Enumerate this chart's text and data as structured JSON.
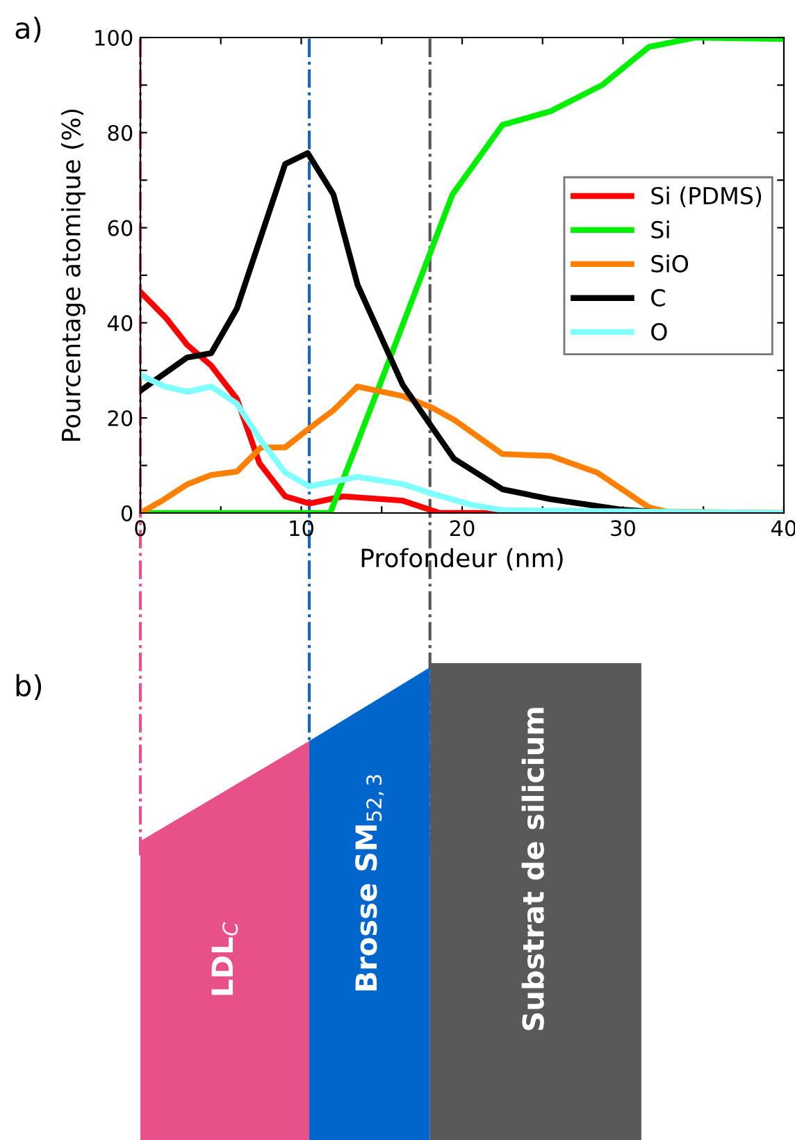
{
  "chart_data": {
    "type": "line",
    "xlabel": "Profondeur (nm)",
    "ylabel": "Pourcentage atomique (%)",
    "xlim": [
      0,
      40
    ],
    "ylim": [
      0,
      100
    ],
    "xticks": [
      0,
      {
        "value": 5,
        "label": null
      },
      10,
      {
        "value": 15,
        "label": null
      },
      20,
      {
        "value": 25,
        "label": null
      },
      30,
      {
        "value": 35,
        "label": null
      },
      40
    ],
    "yticks": [
      0,
      {
        "value": 10,
        "label": null
      },
      20,
      {
        "value": 30,
        "label": null
      },
      40,
      {
        "value": 50,
        "label": null
      },
      60,
      {
        "value": 70,
        "label": null
      },
      80,
      {
        "value": 90,
        "label": null
      },
      100
    ],
    "grid": false,
    "legend": "right",
    "marker": "none",
    "line_style": "solid",
    "series": [
      {
        "name": "Si (PDMS)",
        "color": "#ff0000",
        "x": [
          0,
          1.6,
          2.9,
          4.4,
          6.0,
          7.4,
          9.0,
          10.5,
          12.6,
          16.3,
          18.6,
          30
        ],
        "values": [
          46.5,
          41,
          35.4,
          31,
          24,
          10.5,
          3.5,
          2,
          3.5,
          2.6,
          0,
          0
        ]
      },
      {
        "name": "Si",
        "color": "#00ee00",
        "x": [
          0,
          10,
          11.8,
          15,
          19.4,
          22.5,
          25.5,
          28.7,
          31.6,
          34.5,
          40
        ],
        "values": [
          0,
          0,
          0,
          28,
          67,
          81.6,
          84.5,
          90,
          98,
          100,
          99.7
        ]
      },
      {
        "name": "SiO",
        "color": "#ff8000",
        "x": [
          0,
          1.4,
          2.9,
          4.4,
          6.0,
          7.5,
          9.0,
          10.5,
          12,
          13.5,
          16.3,
          18.1,
          19.5,
          22.5,
          25.5,
          28.4,
          31.6,
          32.7,
          40
        ],
        "values": [
          0,
          2.7,
          6,
          8,
          8.7,
          13.8,
          13.8,
          17.8,
          21.6,
          26.6,
          24.6,
          22.2,
          19.6,
          12.4,
          12,
          8.5,
          1.2,
          0.3,
          0
        ]
      },
      {
        "name": "C",
        "color": "#000000",
        "x": [
          0,
          2.9,
          4.4,
          6.0,
          9.0,
          10.4,
          12.0,
          13.5,
          16.3,
          18.1,
          19.5,
          22.5,
          25.5,
          29.9,
          33
        ],
        "values": [
          25.7,
          32.7,
          33.6,
          43,
          73.4,
          75.7,
          67,
          48,
          27,
          18.2,
          11.4,
          5,
          2.9,
          0.7,
          0
        ]
      },
      {
        "name": "O",
        "color": "#80ffff",
        "x": [
          0,
          1.5,
          2.9,
          4.4,
          6,
          7.5,
          9,
          10.5,
          13.5,
          16.3,
          18.1,
          20.6,
          22.5,
          40
        ],
        "values": [
          29,
          26.6,
          25.5,
          26.6,
          23,
          15.2,
          8.5,
          5.6,
          7.6,
          6.1,
          4.1,
          1.7,
          0.6,
          0
        ]
      }
    ],
    "ref_lines": [
      {
        "axis": "x",
        "value": 0,
        "color": "#e8508a",
        "line_style": "dashdot"
      },
      {
        "axis": "x",
        "value": 10.5,
        "color": "#1565c0",
        "line_style": "dashdot"
      },
      {
        "axis": "x",
        "value": 18,
        "color": "#555555",
        "line_style": "dashdot"
      }
    ],
    "annotations": [
      "a)",
      "b)",
      "LDL$_{C}$",
      "Brosse SM$_{52,3}$",
      "Substrat de silicium"
    ]
  }
}
